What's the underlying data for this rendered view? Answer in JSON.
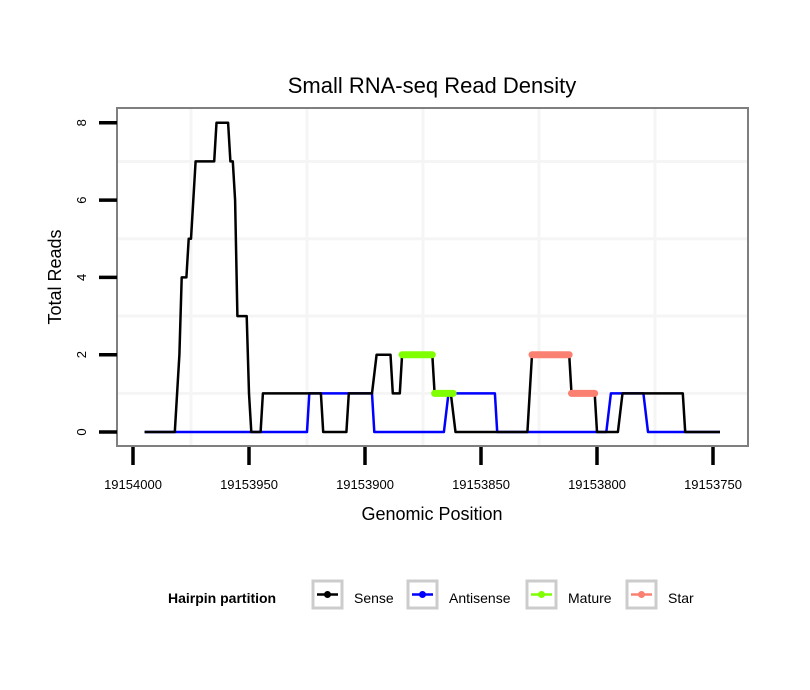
{
  "chart_data": {
    "type": "line",
    "title": "Small RNA-seq Read Density",
    "xlabel": "Genomic Position",
    "ylabel": "Total Reads",
    "xlim": [
      19154005,
      19153742
    ],
    "x_reversed": true,
    "ylim": [
      -0.3,
      8.3
    ],
    "x_ticks": [
      19154000,
      19153950,
      19153900,
      19153850,
      19153800,
      19153750
    ],
    "x_tick_labels": [
      "19154000",
      "19153950",
      "19153900",
      "19153850",
      "19153800",
      "19153750"
    ],
    "y_ticks": [
      0,
      2,
      4,
      6,
      8
    ],
    "y_tick_labels": [
      "0",
      "2",
      "4",
      "6",
      "8"
    ],
    "grid": {
      "major": false,
      "minor": true,
      "x_minor": [
        19153975,
        19153925,
        19153875,
        19153825,
        19153775
      ],
      "y_minor": [
        1,
        3,
        5,
        7
      ]
    },
    "legend": {
      "title": "Hairpin partition",
      "placement": "bottom",
      "entries": [
        {
          "name": "Sense",
          "color": "#000000"
        },
        {
          "name": "Antisense",
          "color": "#0000FF"
        },
        {
          "name": "Mature",
          "color": "#7FFF00"
        },
        {
          "name": "Star",
          "color": "#FA8072"
        }
      ]
    },
    "series": [
      {
        "name": "Antisense",
        "color": "#0000FF",
        "style": "line",
        "x": [
          19153995,
          19153925,
          19153924,
          19153897,
          19153896,
          19153866,
          19153864,
          19153844,
          19153843,
          19153796,
          19153794,
          19153780,
          19153778,
          19153747
        ],
        "y": [
          0,
          0,
          1,
          1,
          0,
          0,
          1,
          1,
          0,
          0,
          1,
          1,
          0,
          0
        ]
      },
      {
        "name": "Sense",
        "color": "#000000",
        "style": "line",
        "x": [
          19153995,
          19153982,
          19153980,
          19153979,
          19153977,
          19153976,
          19153975,
          19153973,
          19153965,
          19153964,
          19153959,
          19153958,
          19153957,
          19153956,
          19153955,
          19153951,
          19153950,
          19153949,
          19153945,
          19153944,
          19153919,
          19153918,
          19153908,
          19153907,
          19153897,
          19153895,
          19153889,
          19153888,
          19153885,
          19153884,
          19153871,
          19153870,
          19153863,
          19153861,
          19153830,
          19153828,
          19153812,
          19153811,
          19153801,
          19153800,
          19153791,
          19153789,
          19153763,
          19153762,
          19153747
        ],
        "y": [
          0,
          0,
          2,
          4,
          4,
          5,
          5,
          7,
          7,
          8,
          8,
          7,
          7,
          6,
          3,
          3,
          1,
          0,
          0,
          1,
          1,
          0,
          0,
          1,
          1,
          2,
          2,
          1,
          1,
          2,
          2,
          1,
          1,
          0,
          0,
          2,
          2,
          1,
          1,
          0,
          0,
          1,
          1,
          0,
          0
        ]
      },
      {
        "name": "Mature",
        "color": "#7FFF00",
        "style": "segments",
        "segments": [
          {
            "x0": 19153884,
            "x1": 19153871,
            "y": 2
          },
          {
            "x0": 19153870,
            "x1": 19153862,
            "y": 1
          }
        ]
      },
      {
        "name": "Star",
        "color": "#FA8072",
        "style": "segments",
        "segments": [
          {
            "x0": 19153828,
            "x1": 19153812,
            "y": 2
          },
          {
            "x0": 19153811,
            "x1": 19153801,
            "y": 1
          }
        ]
      }
    ]
  }
}
